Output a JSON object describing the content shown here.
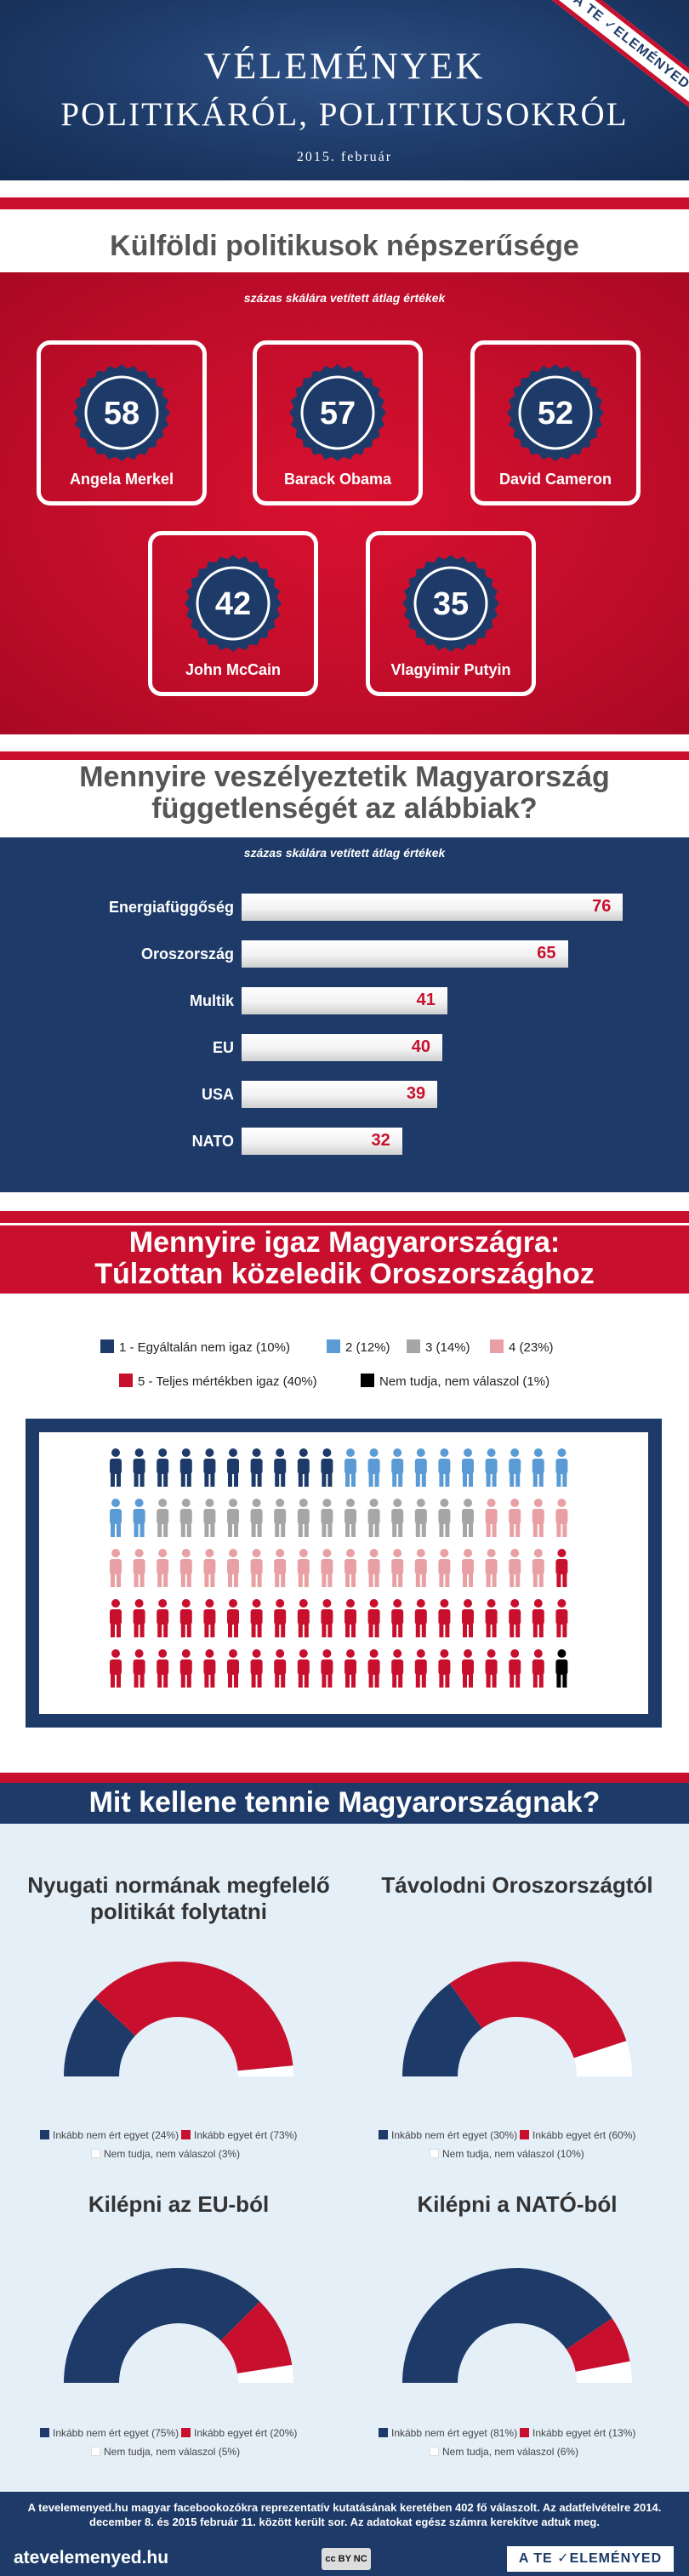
{
  "header": {
    "title_line1": "Vélemények",
    "title_line2": "politikáról, politikusokról",
    "date": "2015. február",
    "ribbon": "A TE ✓ELEMÉNYED"
  },
  "colors": {
    "navy": "#1d3a68",
    "red": "#c8102e",
    "light_blue": "#5b9bd5",
    "gray": "#a6a6a6",
    "pink": "#e8a0a4",
    "black": "#000000"
  },
  "section1": {
    "title": "Külföldi politikusok népszerűsége",
    "note": "százas skálára vetített átlag értékek",
    "politicians": [
      {
        "name": "Angela Merkel",
        "score": "58"
      },
      {
        "name": "Barack Obama",
        "score": "57"
      },
      {
        "name": "David Cameron",
        "score": "52"
      },
      {
        "name": "John McCain",
        "score": "42"
      },
      {
        "name": "Vlagyimir Putyin",
        "score": "35"
      }
    ]
  },
  "section2": {
    "title_line1": "Mennyire veszélyeztetik Magyarország",
    "title_line2": "függetlenségét az alábbiak?",
    "note": "százas skálára vetített átlag értékek"
  },
  "section3": {
    "title_line1": "Mennyire igaz Magyarországra:",
    "title_line2": "Túlzottan közeledik Oroszországhoz",
    "legend": [
      {
        "label": "1 - Egyáltalán nem igaz (10%)",
        "color": "#1d3a68"
      },
      {
        "label": "2 (12%)",
        "color": "#5b9bd5"
      },
      {
        "label": "3 (14%)",
        "color": "#a6a6a6"
      },
      {
        "label": "4 (23%)",
        "color": "#e8a0a4"
      },
      {
        "label": "5 - Teljes mértékben igaz (40%)",
        "color": "#c8102e"
      },
      {
        "label": "Nem tudja, nem válaszol (1%)",
        "color": "#000000"
      }
    ]
  },
  "section4": {
    "title": "Mit kellene tennie Magyarországnak?",
    "questions": [
      {
        "title_line1": "Nyugati normának megfelelő",
        "title_line2": "politikát folytatni",
        "legend": [
          "Inkább nem ért egyet (24%)",
          "Inkább egyet ért (73%)",
          "Nem tudja, nem válaszol (3%)"
        ]
      },
      {
        "title_line1": "Távolodni Oroszországtól",
        "title_line2": "",
        "legend": [
          "Inkább nem ért egyet (30%)",
          "Inkább egyet ért (60%)",
          "Nem tudja, nem válaszol (10%)"
        ]
      },
      {
        "title_line1": "Kilépni az EU-ból",
        "title_line2": "",
        "legend": [
          "Inkább nem ért egyet (75%)",
          "Inkább egyet ért (20%)",
          "Nem tudja, nem válaszol (5%)"
        ]
      },
      {
        "title_line1": "Kilépni a NATÓ-ból",
        "title_line2": "",
        "legend": [
          "Inkább nem ért egyet (81%)",
          "Inkább egyet ért (13%)",
          "Nem tudja, nem válaszol (6%)"
        ]
      }
    ]
  },
  "footer": {
    "note": "A tevelemenyed.hu magyar facebookozókra reprezentatív kutatásának keretében 402 fő válaszolt. Az adatfelvételre 2014. december 8. és 2015 február 11. között került sor. Az adatokat egész számra kerekítve adtuk meg.",
    "site": "atevelemenyed.hu",
    "cc": "cc BY NC",
    "logo": "A TE ✓ELEMÉNYED"
  },
  "chart_data": [
    {
      "type": "bar",
      "title": "Külföldi politikusok népszerűsége",
      "subtitle": "százas skálára vetített átlag értékek",
      "categories": [
        "Angela Merkel",
        "Barack Obama",
        "David Cameron",
        "John McCain",
        "Vlagyimir Putyin"
      ],
      "values": [
        58,
        57,
        52,
        42,
        35
      ]
    },
    {
      "type": "bar",
      "title": "Mennyire veszélyeztetik Magyarország függetlenségét az alábbiak?",
      "subtitle": "százas skálára vetített átlag értékek",
      "categories": [
        "Energiafüggőség",
        "Oroszország",
        "Multik",
        "EU",
        "USA",
        "NATO"
      ],
      "values": [
        76,
        65,
        41,
        40,
        39,
        32
      ]
    },
    {
      "type": "pie",
      "title": "Mennyire igaz Magyarországra: Túlzottan közeledik Oroszországhoz",
      "categories": [
        "1 - Egyáltalán nem igaz",
        "2",
        "3",
        "4",
        "5 - Teljes mértékben igaz",
        "Nem tudja, nem válaszol"
      ],
      "values": [
        10,
        12,
        14,
        23,
        40,
        1
      ]
    },
    {
      "type": "pie",
      "title": "Nyugati normának megfelelő politikát folytatni",
      "categories": [
        "Inkább nem ért egyet",
        "Inkább egyet ért",
        "Nem tudja, nem válaszol"
      ],
      "values": [
        24,
        73,
        3
      ]
    },
    {
      "type": "pie",
      "title": "Távolodni Oroszországtól",
      "categories": [
        "Inkább nem ért egyet",
        "Inkább egyet ért",
        "Nem tudja, nem válaszol"
      ],
      "values": [
        30,
        60,
        10
      ]
    },
    {
      "type": "pie",
      "title": "Kilépni az EU-ból",
      "categories": [
        "Inkább nem ért egyet",
        "Inkább egyet ért",
        "Nem tudja, nem válaszol"
      ],
      "values": [
        75,
        20,
        5
      ]
    },
    {
      "type": "pie",
      "title": "Kilépni a NATÓ-ból",
      "categories": [
        "Inkább nem ért egyet",
        "Inkább egyet ért",
        "Nem tudja, nem válaszol"
      ],
      "values": [
        81,
        13,
        6
      ]
    }
  ]
}
